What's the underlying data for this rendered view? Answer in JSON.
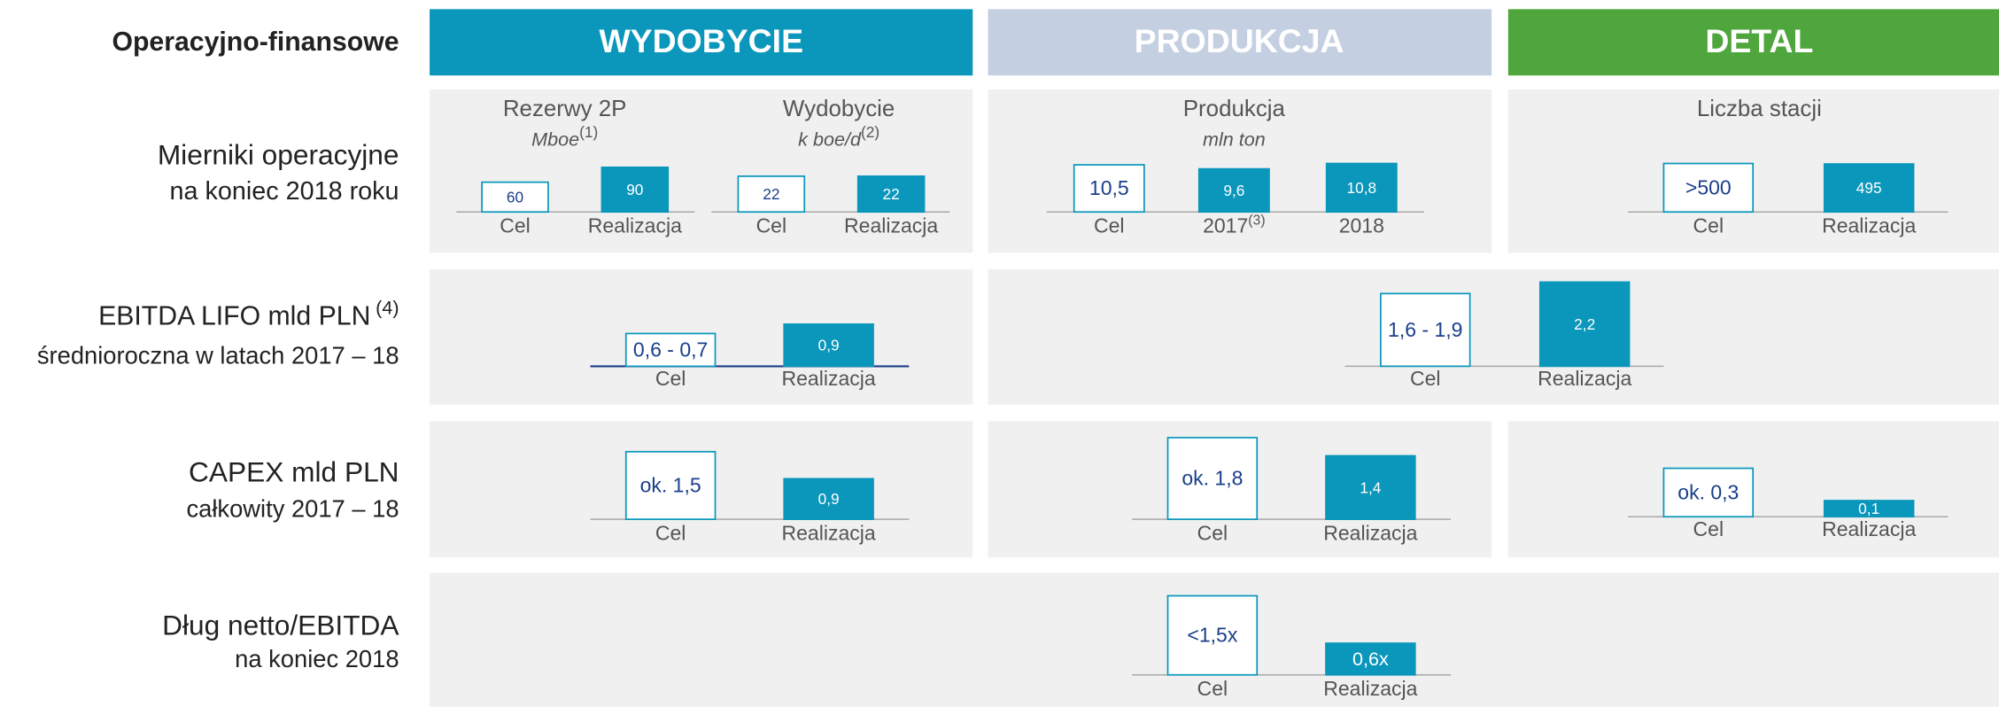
{
  "header": {
    "title": "Operacyjno-finansowe",
    "columns": [
      "WYDOBYCIE",
      "PRODUKCJA",
      "DETAL"
    ]
  },
  "rows": [
    {
      "label": [
        "Mierniki operacyjne",
        "na koniec 2018 roku"
      ],
      "groups": [
        {
          "title": "Rezerwy 2P",
          "subtitle": "Mboe",
          "subtitle_note": "(1)",
          "bars": [
            {
              "category": "Cel",
              "label": "60",
              "value": 60
            },
            {
              "category": "Realizacja",
              "label": "90",
              "value": 90
            }
          ]
        },
        {
          "title": "Wydobycie",
          "subtitle": "k boe/d",
          "subtitle_note": "(2)",
          "bars": [
            {
              "category": "Cel",
              "label": "22",
              "value": 22
            },
            {
              "category": "Realizacja",
              "label": "22",
              "value": 22
            }
          ]
        },
        {
          "title": "Produkcja",
          "subtitle": "mln ton",
          "bars": [
            {
              "category": "Cel",
              "label": "10,5",
              "value": 10.5
            },
            {
              "category": "2017",
              "category_note": "(3)",
              "label": "9,6",
              "value": 9.6
            },
            {
              "category": "2018",
              "label": "10,8",
              "value": 10.8
            }
          ]
        },
        {
          "title": "Liczba stacji",
          "bars": [
            {
              "category": "Cel",
              "label": ">500",
              "value": 500
            },
            {
              "category": "Realizacja",
              "label": "495",
              "value": 495
            }
          ]
        }
      ]
    },
    {
      "label": [
        "EBITDA LIFO mld PLN",
        "średnioroczna w latach 2017 – 18"
      ],
      "label_note": "(4)",
      "groups": [
        {
          "bars": [
            {
              "category": "Cel",
              "label": "0,6 - 0,7",
              "value": 0.7
            },
            {
              "category": "Realizacja",
              "label": "0,9",
              "value": 0.9
            }
          ]
        },
        {
          "bars": [
            {
              "category": "Cel",
              "label": "1,6 - 1,9",
              "value": 1.9
            },
            {
              "category": "Realizacja",
              "label": "2,2",
              "value": 2.2
            }
          ]
        }
      ]
    },
    {
      "label": [
        "CAPEX mld PLN",
        "całkowity 2017 – 18"
      ],
      "groups": [
        {
          "bars": [
            {
              "category": "Cel",
              "label": "ok. 1,5",
              "value": 1.5
            },
            {
              "category": "Realizacja",
              "label": "0,9",
              "value": 0.9
            }
          ]
        },
        {
          "bars": [
            {
              "category": "Cel",
              "label": "ok. 1,8",
              "value": 1.8
            },
            {
              "category": "Realizacja",
              "label": "1,4",
              "value": 1.4
            }
          ]
        },
        {
          "bars": [
            {
              "category": "Cel",
              "label": "ok. 0,3",
              "value": 0.3
            },
            {
              "category": "Realizacja",
              "label": "0,1",
              "value": 0.1
            }
          ]
        }
      ]
    },
    {
      "label": [
        "Dług netto/EBITDA",
        "na koniec 2018"
      ],
      "groups": [
        {
          "bars": [
            {
              "category": "Cel",
              "label": "<1,5x",
              "value": 1.5
            },
            {
              "category": "Realizacja",
              "label": "0,6x",
              "value": 0.6
            }
          ]
        }
      ]
    }
  ]
}
